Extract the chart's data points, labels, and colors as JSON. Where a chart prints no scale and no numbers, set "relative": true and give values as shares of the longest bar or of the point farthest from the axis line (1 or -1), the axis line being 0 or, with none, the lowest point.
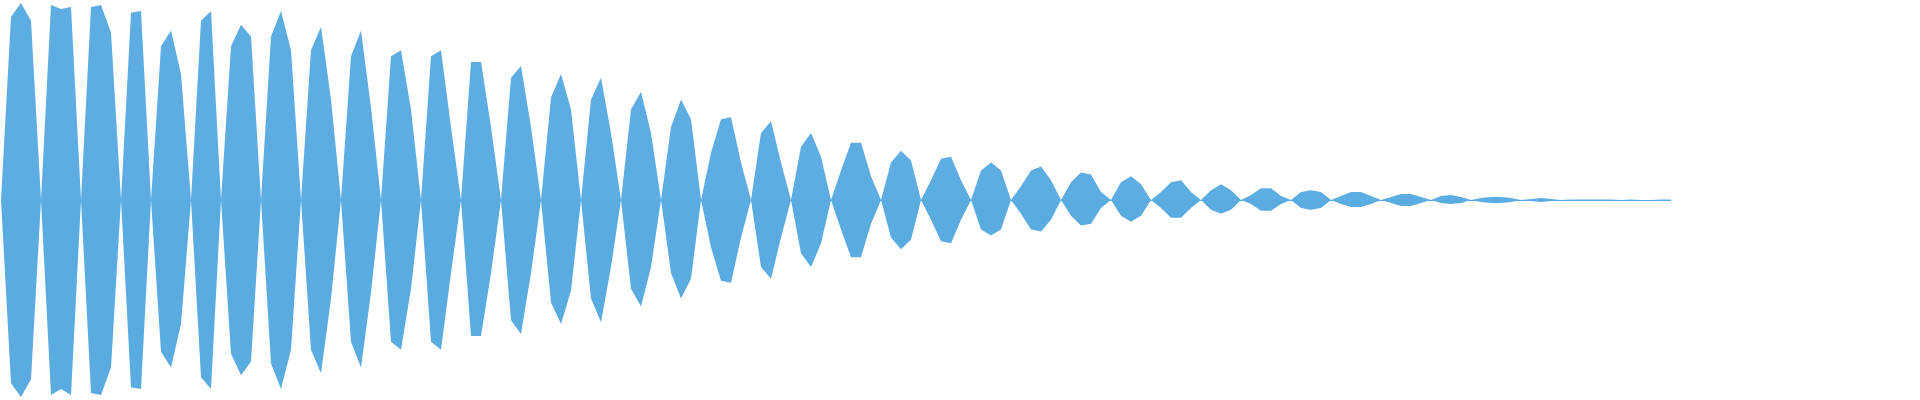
{
  "chart_data": {
    "type": "area",
    "relative": true,
    "categories": [
      null,
      null,
      null,
      null,
      null,
      null,
      null,
      null,
      null,
      null,
      null,
      null,
      null,
      null,
      null,
      null,
      null,
      null,
      null,
      null,
      null,
      null,
      null,
      null,
      null,
      null,
      null,
      null,
      null,
      null,
      null,
      null,
      null,
      null,
      null,
      null,
      null,
      null,
      null,
      null,
      null,
      null,
      null,
      null,
      null,
      null,
      null,
      null,
      null,
      null,
      null,
      null,
      null,
      null,
      null,
      null,
      null,
      null,
      null,
      null,
      null,
      null,
      null,
      null,
      null,
      null,
      null,
      null,
      null,
      null,
      null,
      null,
      null,
      null,
      null,
      null,
      null,
      null,
      null,
      null,
      null,
      null,
      null,
      null,
      null,
      null,
      null,
      null,
      null,
      null,
      null,
      null,
      null,
      null,
      null,
      null,
      null,
      null,
      null,
      null,
      null,
      null,
      null,
      null,
      null,
      null,
      null,
      null,
      null,
      null,
      null,
      null,
      null,
      null,
      null,
      null,
      null,
      null,
      null,
      null,
      null,
      null,
      null,
      null,
      null,
      null,
      null,
      null,
      null,
      null,
      null,
      null,
      null,
      null,
      null,
      null,
      null,
      null,
      null,
      null,
      null,
      null,
      null,
      null,
      null,
      null,
      null,
      null,
      null,
      null,
      null,
      null,
      null,
      null,
      null,
      null,
      null,
      null,
      null,
      null,
      null,
      null,
      null,
      null,
      null,
      null,
      null,
      null
    ],
    "series": [
      {
        "color": "#5dade2",
        "values": [
          0,
          0.93,
          1.0,
          0.91,
          0,
          0.99,
          0.97,
          0.98,
          0,
          0.98,
          0.99,
          0.85,
          0,
          0.95,
          0.96,
          0,
          0.78,
          0.86,
          0.64,
          0,
          0.91,
          0.96,
          0,
          0.78,
          0.89,
          0.83,
          0,
          0.83,
          0.96,
          0.76,
          0,
          0.76,
          0.88,
          0.51,
          0,
          0.73,
          0.86,
          0.47,
          0,
          0.73,
          0.76,
          0.46,
          0,
          0.73,
          0.76,
          0.37,
          0,
          0.7,
          0.7,
          0.37,
          0,
          0.62,
          0.68,
          0.37,
          0,
          0.52,
          0.64,
          0.46,
          0,
          0.51,
          0.62,
          0.34,
          0,
          0.46,
          0.55,
          0.34,
          0,
          0.37,
          0.51,
          0.41,
          0,
          0.24,
          0.41,
          0.42,
          0.19,
          0,
          0.34,
          0.4,
          0.19,
          0,
          0.27,
          0.34,
          0.22,
          0,
          0.15,
          0.29,
          0.29,
          0.12,
          0,
          0.19,
          0.25,
          0.2,
          0,
          0.1,
          0.21,
          0.22,
          0.1,
          0,
          0.15,
          0.19,
          0.15,
          0,
          0.07,
          0.15,
          0.17,
          0.1,
          0,
          0.09,
          0.14,
          0.13,
          0.04,
          0,
          0.09,
          0.12,
          0.08,
          0,
          0.04,
          0.09,
          0.1,
          0.04,
          0,
          0.05,
          0.08,
          0.05,
          0,
          0.025,
          0.06,
          0.06,
          0.02,
          0,
          0.04,
          0.05,
          0.04,
          0,
          0.02,
          0.04,
          0.04,
          0.02,
          0,
          0.015,
          0.03,
          0.03,
          0.015,
          0,
          0.02,
          0.025,
          0.015,
          0,
          0.01,
          0.015,
          0.015,
          0.01,
          0,
          0.005,
          0.01,
          0.005,
          0,
          0.003,
          0.003,
          0.003,
          0.003,
          0.003,
          0,
          0.003,
          0,
          0,
          0.003,
          0.003
        ]
      },
      {
        "color": "#5aabe0",
        "values": [
          0,
          -0.93,
          -1.0,
          -0.91,
          0,
          -0.99,
          -0.96,
          -0.99,
          0,
          -0.98,
          -0.99,
          -0.85,
          0,
          -0.95,
          -0.96,
          0,
          -0.77,
          -0.85,
          -0.63,
          0,
          -0.9,
          -0.96,
          0,
          -0.78,
          -0.89,
          -0.82,
          0,
          -0.83,
          -0.96,
          -0.76,
          0,
          -0.76,
          -0.88,
          -0.5,
          0,
          -0.72,
          -0.85,
          -0.47,
          0,
          -0.72,
          -0.76,
          -0.45,
          0,
          -0.72,
          -0.76,
          -0.37,
          0,
          -0.69,
          -0.69,
          -0.37,
          0,
          -0.61,
          -0.68,
          -0.37,
          0,
          -0.52,
          -0.63,
          -0.46,
          0,
          -0.5,
          -0.62,
          -0.34,
          0,
          -0.45,
          -0.54,
          -0.34,
          0,
          -0.37,
          -0.5,
          -0.4,
          0,
          -0.24,
          -0.41,
          -0.42,
          -0.19,
          0,
          -0.34,
          -0.4,
          -0.19,
          0,
          -0.27,
          -0.34,
          -0.22,
          0,
          -0.15,
          -0.29,
          -0.29,
          -0.12,
          0,
          -0.19,
          -0.25,
          -0.2,
          0,
          -0.1,
          -0.21,
          -0.22,
          -0.1,
          0,
          -0.15,
          -0.18,
          -0.15,
          0,
          -0.07,
          -0.15,
          -0.16,
          -0.1,
          0,
          -0.08,
          -0.13,
          -0.12,
          -0.04,
          0,
          -0.08,
          -0.11,
          -0.08,
          0,
          -0.04,
          -0.09,
          -0.09,
          -0.04,
          0,
          -0.05,
          -0.07,
          -0.05,
          0,
          -0.02,
          -0.055,
          -0.055,
          -0.02,
          0,
          -0.04,
          -0.05,
          -0.04,
          0,
          -0.02,
          -0.035,
          -0.035,
          -0.02,
          0,
          -0.015,
          -0.03,
          -0.03,
          -0.015,
          0,
          -0.015,
          -0.02,
          -0.015,
          0,
          -0.01,
          -0.015,
          -0.015,
          -0.01,
          0,
          -0.005,
          -0.01,
          -0.005,
          0,
          -0.003,
          -0.003,
          -0.003,
          -0.003,
          -0.003,
          0,
          -0.003,
          0,
          0,
          -0.003,
          -0.003
        ]
      }
    ]
  }
}
